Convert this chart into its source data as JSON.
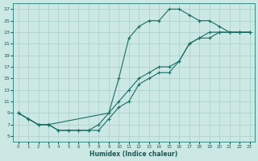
{
  "xlabel": "Humidex (Indice chaleur)",
  "bg_color": "#cce8e4",
  "grid_color": "#aacfca",
  "line_color": "#1a6e64",
  "xlim": [
    -0.5,
    23.5
  ],
  "ylim": [
    4,
    28
  ],
  "xticks": [
    0,
    1,
    2,
    3,
    4,
    5,
    6,
    7,
    8,
    9,
    10,
    11,
    12,
    13,
    14,
    15,
    16,
    17,
    18,
    19,
    20,
    21,
    22,
    23
  ],
  "yticks": [
    5,
    7,
    9,
    11,
    13,
    15,
    17,
    19,
    21,
    23,
    25,
    27
  ],
  "line1_x": [
    0,
    1,
    2,
    3,
    4,
    5,
    6,
    7,
    8,
    9,
    10,
    11,
    12,
    13,
    14,
    15,
    16,
    17,
    18,
    19,
    20,
    21,
    22,
    23
  ],
  "line1_y": [
    9,
    8,
    7,
    7,
    6,
    6,
    6,
    6,
    6,
    8,
    10,
    11,
    14,
    15,
    16,
    16,
    18,
    21,
    22,
    23,
    23,
    23,
    23,
    23
  ],
  "line2_x": [
    0,
    1,
    2,
    3,
    4,
    5,
    6,
    7,
    8,
    9,
    10,
    11,
    12,
    13,
    14,
    15,
    16,
    17,
    18,
    19,
    20,
    21,
    22,
    23
  ],
  "line2_y": [
    9,
    8,
    7,
    7,
    6,
    6,
    6,
    6,
    7,
    9,
    15,
    22,
    24,
    25,
    25,
    27,
    27,
    26,
    25,
    25,
    24,
    23,
    23,
    23
  ],
  "line3_x": [
    0,
    1,
    2,
    3,
    9,
    10,
    11,
    12,
    13,
    14,
    15,
    16,
    17,
    18,
    19,
    20,
    21,
    22,
    23
  ],
  "line3_y": [
    9,
    8,
    7,
    7,
    9,
    11,
    13,
    15,
    16,
    17,
    17,
    18,
    21,
    22,
    22,
    23,
    23,
    23,
    23
  ]
}
